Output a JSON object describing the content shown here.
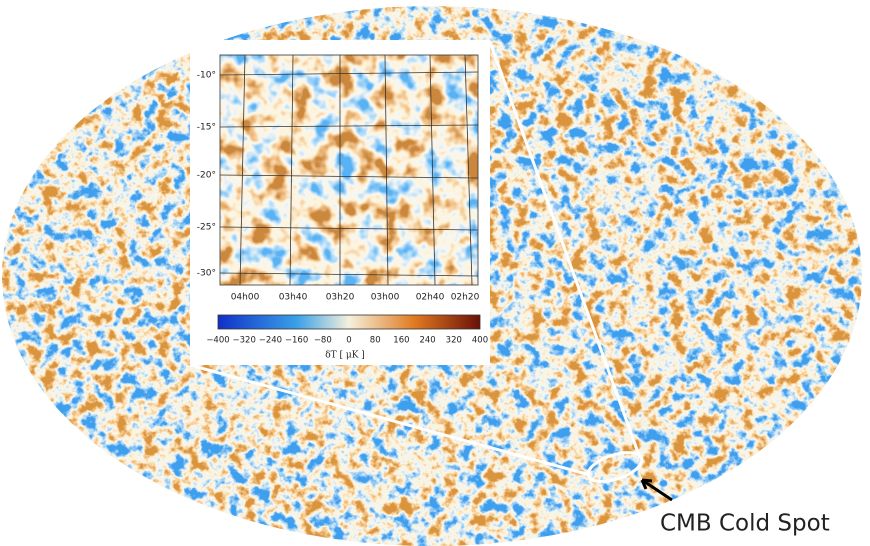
{
  "inset": {
    "y_labels": [
      "-10°",
      "-15°",
      "-20°",
      "-25°",
      "-30°"
    ],
    "x_labels": [
      "04h00",
      "03h40",
      "03h20",
      "03h00",
      "02h40",
      "02h20"
    ],
    "colorbar_labels": [
      "−400",
      "−320",
      "−240",
      "−160",
      "−80",
      "0",
      "80",
      "160",
      "240",
      "320",
      "400"
    ],
    "colorbar_title": "δT [ μK ]"
  },
  "annotation": "CMB Cold Spot"
}
